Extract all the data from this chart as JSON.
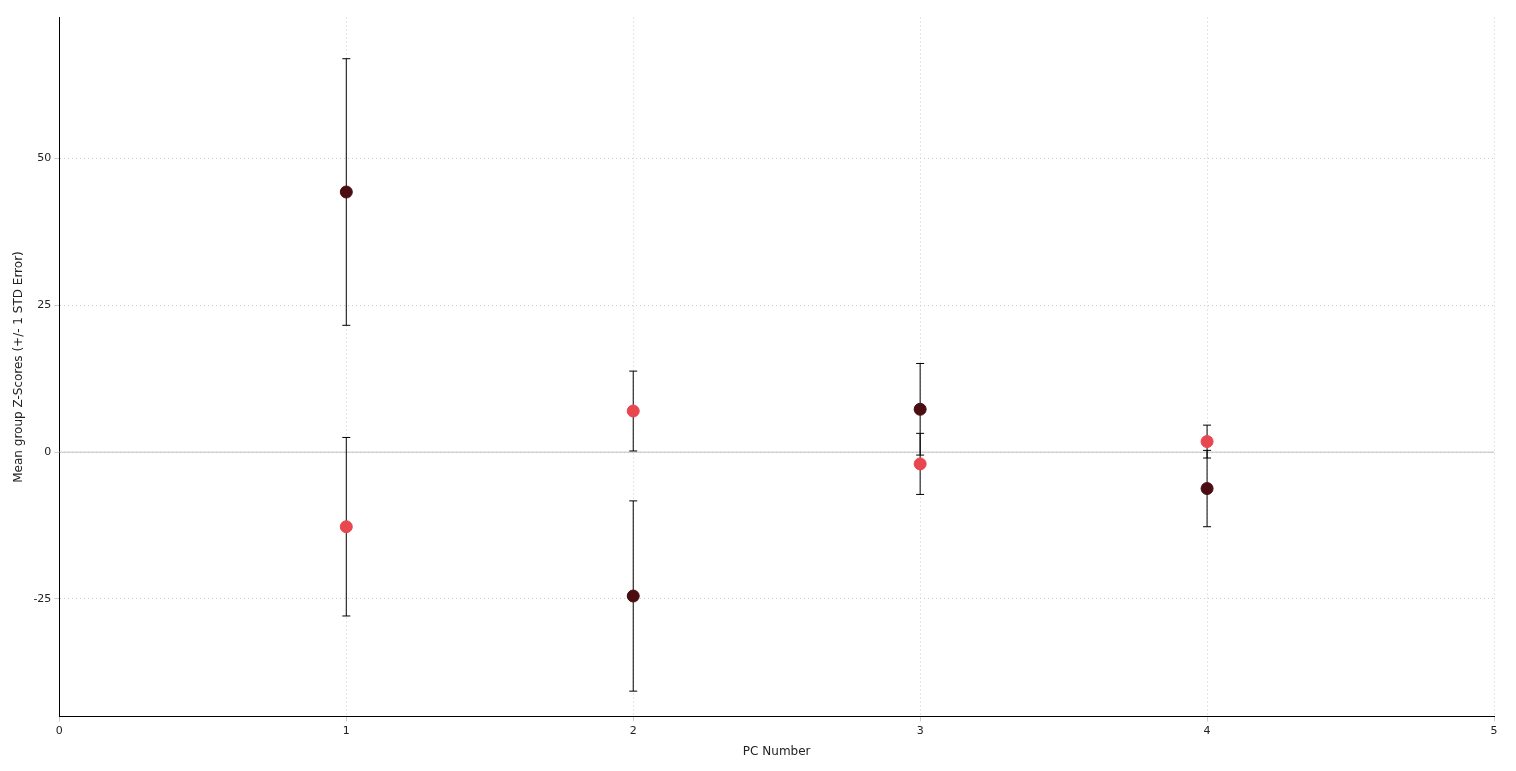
{
  "chart_data": {
    "type": "scatter",
    "xlabel": "PC Number",
    "ylabel": "Mean group Z-Scores (+/- 1 STD Error)",
    "x": [
      1,
      2,
      3,
      4
    ],
    "series": [
      {
        "color": "#e8474f",
        "values": [
          -12.7,
          7,
          -2,
          1.8
        ],
        "errors": [
          15.2,
          6.8,
          5.2,
          2.8
        ]
      },
      {
        "color": "#4a0e12",
        "values": [
          44.3,
          -24.5,
          7.3,
          -6.2
        ],
        "errors": [
          22.7,
          16.2,
          7.8,
          6.5
        ]
      }
    ],
    "xlim": [
      0,
      5
    ],
    "xticks": [
      0,
      1,
      2,
      3,
      4,
      5
    ],
    "ylim": [
      -45,
      74
    ],
    "yticks": [
      -25,
      0,
      25,
      50
    ],
    "ref_lines": [
      {
        "axis": "y",
        "value": 0,
        "color": "#c0c0c0"
      }
    ],
    "grid": true,
    "marker": "circle",
    "legend": false
  }
}
